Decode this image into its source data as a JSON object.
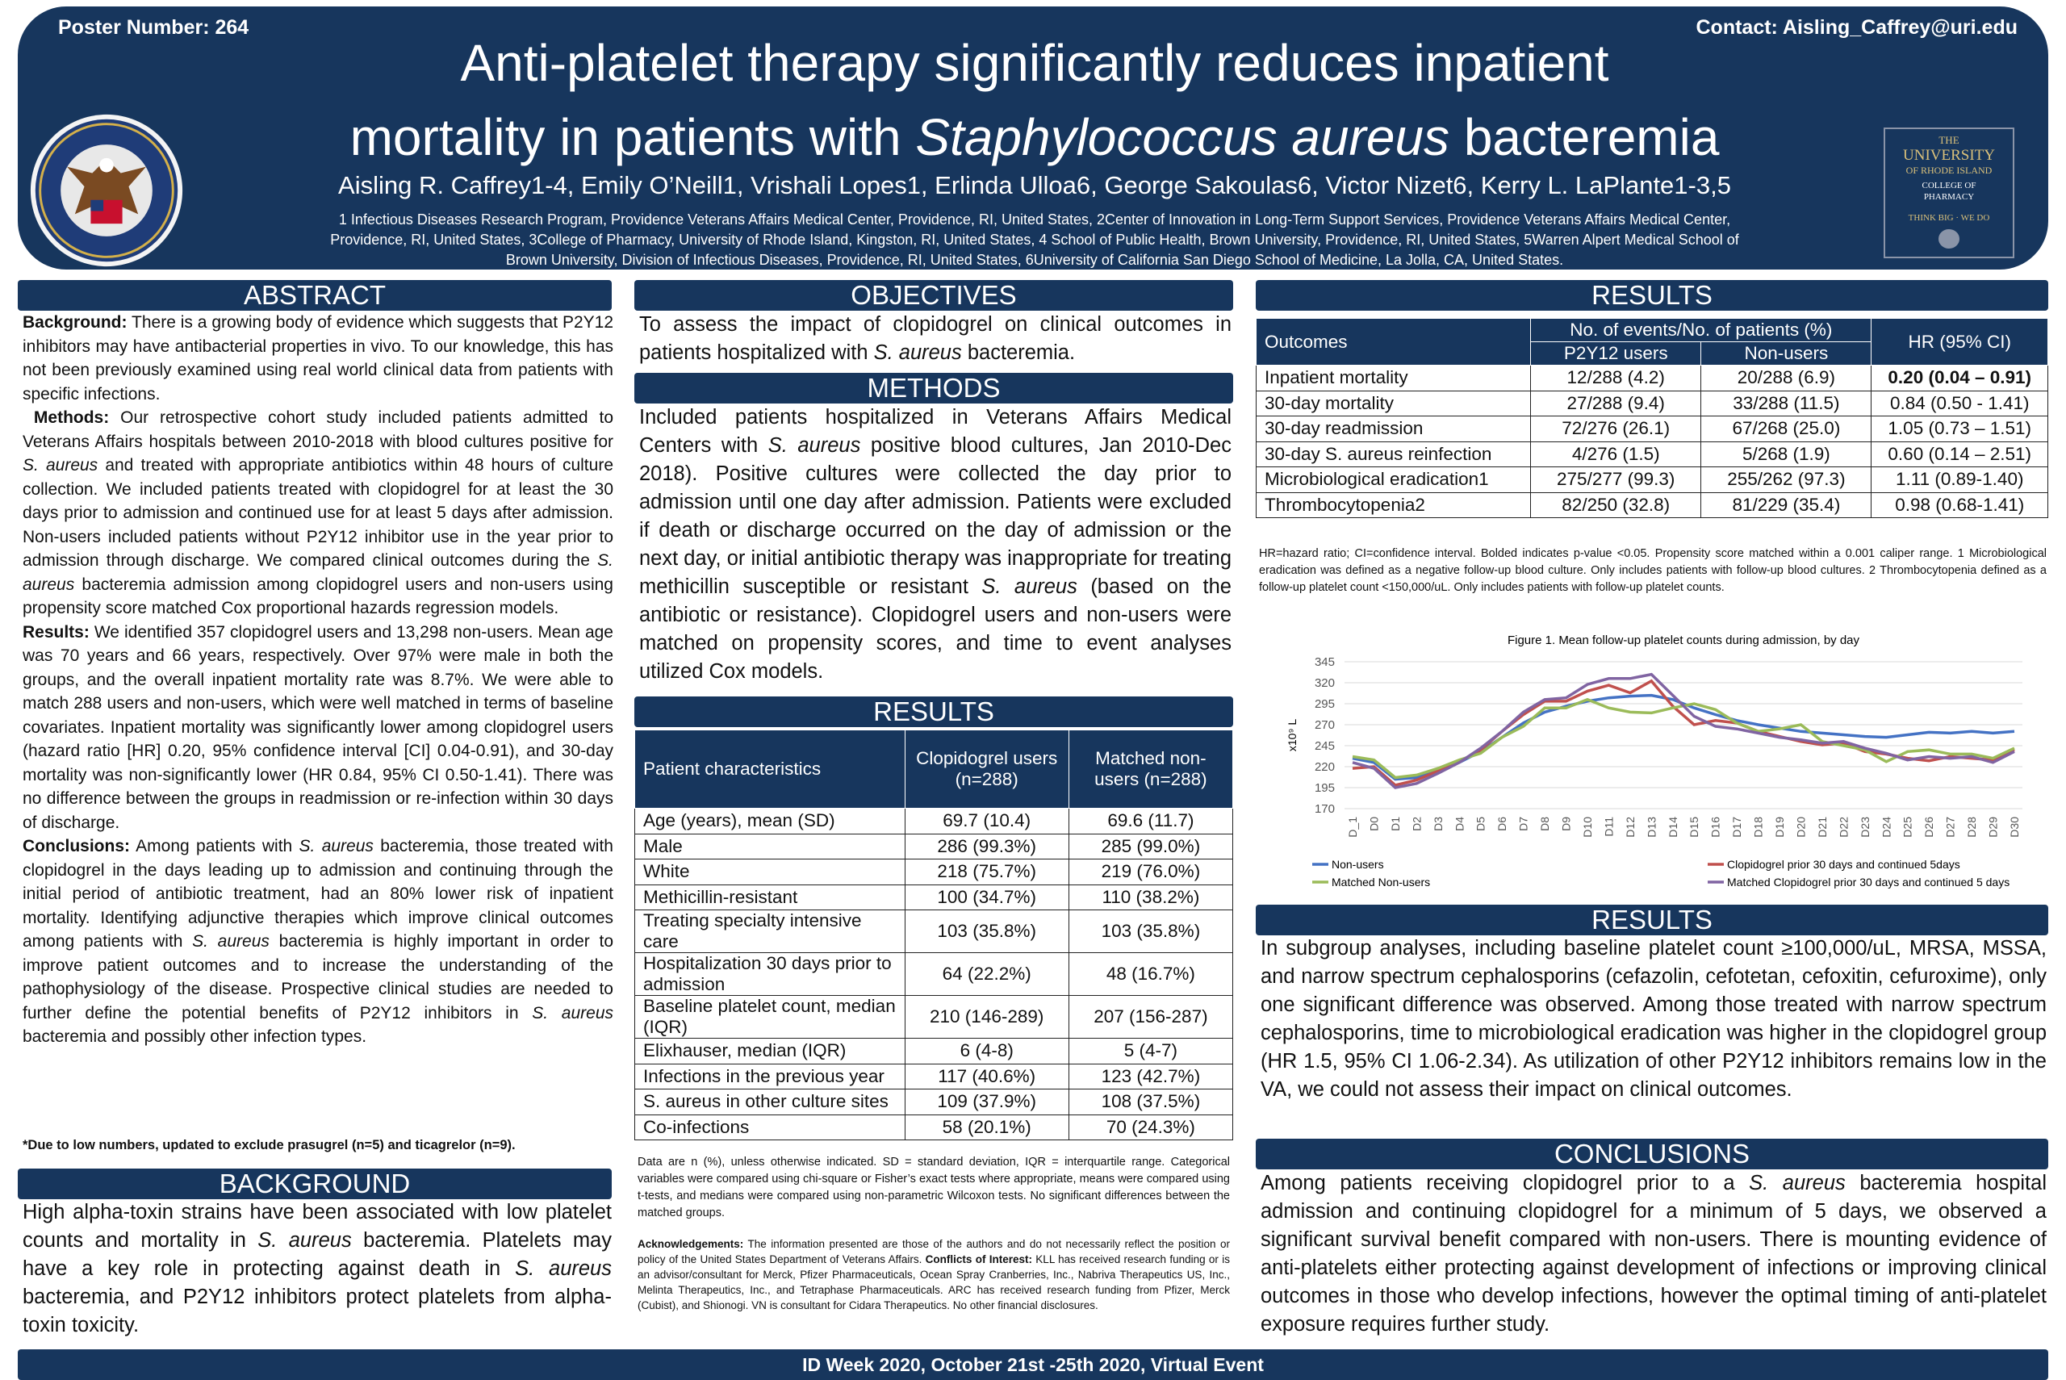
{
  "header": {
    "poster_number": "Poster Number: 264",
    "contact": "Contact: Aisling_Caffrey@uri.edu",
    "title_line1": "Anti-platelet therapy significantly reduces inpatient",
    "title_line2_a": "mortality in patients with ",
    "title_line2_b": "Staphylococcus aureus",
    "title_line2_c": " bacteremia",
    "authors": "Aisling R. Caffrey1-4, Emily O’Neill1, Vrishali Lopes1, Erlinda Ulloa6, George Sakoulas6, Victor Nizet6, Kerry L. LaPlante1-3,5",
    "affiliations": "1 Infectious Diseases Research Program, Providence Veterans Affairs Medical Center, Providence, RI, United States, 2Center of Innovation in Long-Term Support Services, Providence Veterans Affairs Medical Center, Providence, RI, United States, 3College of Pharmacy, University of Rhode Island, Kingston, RI, United States, 4 School of Public Health, Brown University, Providence, RI, United States, 5Warren Alpert Medical School of Brown University, Division of Infectious Diseases, Providence, RI, United States, 6University of California San Diego School of Medicine, La Jolla, CA, United States.",
    "seal_text": "DEPARTMENT OF VETERANS AFFAIRS · UNITED STATES OF AMERICA",
    "uri_logo": {
      "l1": "THE",
      "l2": "UNIVERSITY",
      "l3": "OF RHODE ISLAND",
      "l4": "COLLEGE OF",
      "l5": "PHARMACY",
      "l6": "THINK BIG",
      "l7": "WE DO"
    }
  },
  "abstract": {
    "heading": "ABSTRACT",
    "bg_label": "Background:",
    "bg_text": " There is a growing body of evidence which suggests that P2Y12 inhibitors may have antibacterial properties in vivo. To our knowledge, this has not been previously examined using real world clinical data from patients with specific infections.",
    "methods_label": "Methods:",
    "methods_text_a": " Our retrospective cohort study included patients admitted to Veterans Affairs hospitals between 2010-2018 with blood cultures positive for ",
    "methods_text_b": " and treated with appropriate antibiotics within 48 hours of culture collection. We included patients treated with clopidogrel for at least the 30 days prior to admission and continued use for at least 5 days after admission. Non-users included patients without P2Y12 inhibitor use in the year prior to admission through discharge. We compared clinical outcomes during the ",
    "methods_text_c": " bacteremia admission among clopidogrel users and non-users using propensity score matched Cox proportional hazards regression models.",
    "results_label": "Results:",
    "results_text": " We identified 357 clopidogrel users and 13,298 non-users. Mean age was 70 years and 66 years, respectively. Over 97% were male in both the groups, and the overall inpatient mortality rate was 8.7%. We were able to match 288 users and non-users, which were well matched in terms of baseline covariates. Inpatient mortality was significantly lower among clopidogrel users (hazard ratio [HR] 0.20, 95% confidence interval [CI] 0.04-0.91), and 30-day mortality was non-significantly lower (HR 0.84, 95% CI 0.50-1.41). There was no difference between the groups in readmission or re-infection within 30 days of discharge.",
    "conclusions_label": "Conclusions:",
    "conclusions_text_a": " Among patients with ",
    "conclusions_text_b": " bacteremia, those treated with clopidogrel in the days leading up to admission and continuing through the initial period of antibiotic treatment, had an 80% lower risk of inpatient mortality. Identifying adjunctive therapies which improve clinical outcomes among patients with ",
    "conclusions_text_c": " bacteremia is highly important in order to improve patient outcomes and to increase the understanding of the pathophysiology of the disease. Prospective clinical studies are needed to further define the potential benefits of P2Y12 inhibitors in ",
    "conclusions_text_d": " bacteremia and possibly other infection types.",
    "s_aureus_abbr": "S. aureus",
    "footnote": "*Due to low numbers, updated to exclude prasugrel (n=5) and ticagrelor (n=9)."
  },
  "background": {
    "heading": "BACKGROUND",
    "text_a": "High alpha-toxin strains have been associated with low platelet counts and mortality in ",
    "text_b": " bacteremia. Platelets may have a key role in protecting against death in ",
    "text_c": " bacteremia, and P2Y12 inhibitors protect platelets from alpha-toxin toxicity."
  },
  "objectives": {
    "heading": "OBJECTIVES",
    "text_a": "To assess the impact of clopidogrel on clinical outcomes in patients hospitalized with ",
    "text_b": " bacteremia."
  },
  "methods": {
    "heading": "METHODS",
    "text_a": "Included patients hospitalized in Veterans Affairs Medical Centers with ",
    "text_b": " positive blood cultures, Jan 2010-Dec 2018). Positive cultures were collected the day prior to admission until one day after admission. Patients were excluded if death or discharge occurred on the day of admission or the next day, or initial antibiotic therapy was inappropriate for treating methicillin susceptible or resistant ",
    "text_c": " (based on the antibiotic or resistance). Clopidogrel users and non-users were matched on propensity scores, and time to event analyses utilized Cox models."
  },
  "results_mid": {
    "heading": "RESULTS",
    "col1": "Patient characteristics",
    "col2": "Clopidogrel users (n=288)",
    "col3": "Matched non-users (n=288)",
    "rows": [
      [
        "Age (years), mean (SD)",
        "69.7 (10.4)",
        "69.6 (11.7)"
      ],
      [
        "Male",
        "286 (99.3%)",
        "285 (99.0%)"
      ],
      [
        "White",
        "218 (75.7%)",
        "219 (76.0%)"
      ],
      [
        "Methicillin-resistant",
        "100 (34.7%)",
        "110 (38.2%)"
      ],
      [
        "Treating specialty intensive care",
        "103 (35.8%)",
        "103 (35.8%)"
      ],
      [
        "Hospitalization 30 days prior to admission",
        "64 (22.2%)",
        "48 (16.7%)"
      ],
      [
        "Baseline platelet count, median (IQR)",
        "210 (146-289)",
        "207 (156-287)"
      ],
      [
        "Elixhauser, median (IQR)",
        "6 (4-8)",
        "5 (4-7)"
      ],
      [
        "Infections in the previous year",
        "117 (40.6%)",
        "123 (42.7%)"
      ],
      [
        "S. aureus in other culture sites",
        "109 (37.9%)",
        "108 (37.5%)"
      ],
      [
        "Co-infections",
        "58 (20.1%)",
        "70 (24.3%)"
      ]
    ],
    "note": "Data are n (%), unless otherwise indicated. SD = standard deviation, IQR = interquartile range. Categorical variables were compared using chi-square or Fisher’s exact tests where appropriate, means were compared using t-tests, and medians were compared using non-parametric Wilcoxon tests. No significant differences between the matched groups.",
    "ack_label": "Acknowledgements:",
    "ack_text": " The information presented are those of the authors and do not necessarily reflect the position or policy of the United States Department of Veterans Affairs. ",
    "coi_label": "Conflicts of Interest:",
    "coi_text": " KLL has received research funding or is an advisor/consultant for Merck, Pfizer Pharmaceuticals, Ocean Spray Cranberries, Inc., Nabriva Therapeutics US, Inc., Melinta Therapeutics, Inc., and Tetraphase Pharmaceuticals. ARC has received research funding from Pfizer, Merck (Cubist), and Shionogi. VN is consultant for Cidara Therapeutics. No other financial disclosures."
  },
  "results_right": {
    "heading": "RESULTS",
    "col_outcomes": "Outcomes",
    "col_events": "No. of events/No. of patients (%)",
    "col_users": "P2Y12 users",
    "col_nonusers": "Non-users",
    "col_hr": "HR (95% CI)",
    "rows": [
      [
        "Inpatient mortality",
        "12/288 (4.2)",
        "20/288 (6.9)",
        "0.20 (0.04 – 0.91)"
      ],
      [
        "30-day mortality",
        "27/288 (9.4)",
        "33/288 (11.5)",
        "0.84 (0.50 - 1.41)"
      ],
      [
        "30-day readmission",
        "72/276 (26.1)",
        "67/268 (25.0)",
        "1.05 (0.73 – 1.51)"
      ],
      [
        "30-day S. aureus reinfection",
        "4/276 (1.5)",
        "5/268 (1.9)",
        "0.60 (0.14 – 2.51)"
      ],
      [
        "Microbiological eradication1",
        "275/277 (99.3)",
        "255/262 (97.3)",
        "1.11 (0.89-1.40)"
      ],
      [
        "Thrombocytopenia2",
        "82/250 (32.8)",
        "81/229 (35.4)",
        "0.98 (0.68-1.41)"
      ]
    ],
    "note": "HR=hazard ratio; CI=confidence interval. Bolded indicates p-value <0.05. Propensity score matched within a 0.001 caliper range. 1 Microbiological eradication was defined as a negative follow-up blood culture. Only includes patients with follow-up blood cultures. 2 Thrombocytopenia defined as a follow-up platelet count <150,000/uL. Only includes patients with follow-up platelet counts."
  },
  "chart_data": {
    "type": "line",
    "title": "Figure 1. Mean follow-up platelet counts during admission, by day",
    "ylabel": "x10⁹ L",
    "ylim": [
      170,
      345
    ],
    "yticks": [
      170,
      195,
      220,
      245,
      270,
      295,
      320,
      345
    ],
    "x": [
      "D_1",
      "D0",
      "D1",
      "D2",
      "D3",
      "D4",
      "D5",
      "D6",
      "D7",
      "D8",
      "D9",
      "D10",
      "D11",
      "D12",
      "D13",
      "D14",
      "D15",
      "D16",
      "D17",
      "D18",
      "D19",
      "D20",
      "D21",
      "D22",
      "D23",
      "D24",
      "D25",
      "D26",
      "D27",
      "D28",
      "D29",
      "D30"
    ],
    "series": [
      {
        "name": "Non-users",
        "color": "#4472c4",
        "values": [
          230,
          225,
          205,
          207,
          215,
          225,
          238,
          255,
          272,
          285,
          292,
          298,
          302,
          304,
          305,
          300,
          290,
          282,
          275,
          270,
          266,
          262,
          260,
          258,
          256,
          255,
          258,
          261,
          260,
          262,
          260,
          262
        ]
      },
      {
        "name": "Clopidogrel prior 30 days and continued 5days",
        "color": "#c0504d",
        "values": [
          218,
          220,
          198,
          204,
          215,
          226,
          240,
          262,
          282,
          298,
          298,
          310,
          317,
          308,
          322,
          292,
          270,
          275,
          272,
          262,
          256,
          250,
          246,
          248,
          238,
          235,
          230,
          227,
          232,
          230,
          228,
          240
        ]
      },
      {
        "name": "Matched Non-users",
        "color": "#9bbb59",
        "values": [
          232,
          228,
          207,
          210,
          218,
          228,
          236,
          255,
          268,
          290,
          290,
          300,
          290,
          285,
          284,
          290,
          295,
          288,
          272,
          262,
          265,
          270,
          250,
          245,
          240,
          226,
          238,
          240,
          235,
          235,
          230,
          242
        ]
      },
      {
        "name": "Matched Clopidogrel prior 30 days and continued 5 days",
        "color": "#8064a2",
        "values": [
          225,
          218,
          195,
          200,
          212,
          225,
          242,
          262,
          285,
          300,
          302,
          318,
          325,
          325,
          330,
          305,
          280,
          268,
          265,
          260,
          255,
          252,
          248,
          250,
          242,
          236,
          228,
          232,
          230,
          232,
          225,
          238
        ]
      }
    ]
  },
  "subgroup": {
    "heading": "RESULTS",
    "text": "In subgroup analyses, including baseline platelet count ≥100,000/uL, MRSA, MSSA, and narrow spectrum cephalosporins (cefazolin, cefotetan, cefoxitin, cefuroxime), only one significant difference was observed. Among those treated with narrow spectrum cephalosporins, time to microbiological eradication was higher in the clopidogrel group (HR 1.5, 95% CI 1.06-2.34). As utilization of other P2Y12 inhibitors remains low in the VA, we could not assess their impact on clinical outcomes."
  },
  "conclusions": {
    "heading": "CONCLUSIONS",
    "text_a": "Among patients receiving clopidogrel prior to a ",
    "text_b": " bacteremia hospital admission and continuing clopidogrel for a minimum of 5 days, we observed a significant survival benefit compared with non-users. There is mounting evidence of anti-platelets either protecting against development of infections or improving clinical outcomes in those who develop infections, however the optimal timing of anti-platelet exposure requires further study."
  },
  "footer": {
    "text": "ID Week 2020, October 21st -25th 2020, Virtual Event"
  }
}
